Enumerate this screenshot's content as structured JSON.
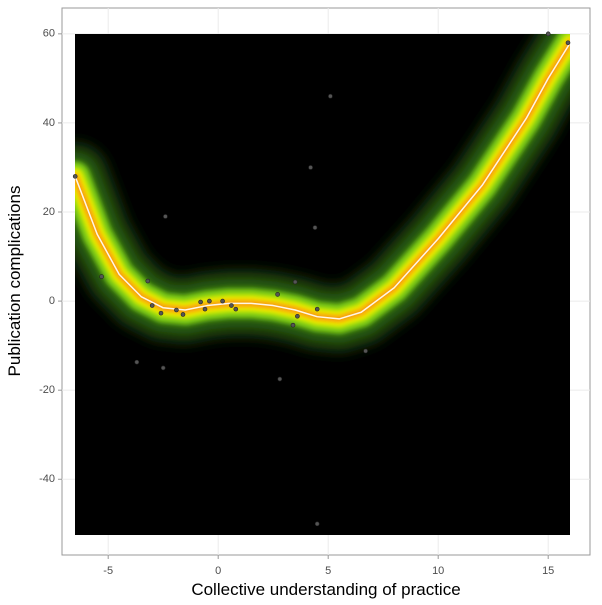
{
  "chart_data": {
    "type": "scatter",
    "x_label": "Collective understanding of practice",
    "y_label": "Publication complications",
    "xlim": [
      -7.1,
      16.9
    ],
    "ylim": [
      -57,
      65.8
    ],
    "xticks": [
      -5,
      0,
      5,
      10,
      15
    ],
    "yticks": [
      60,
      40,
      20,
      0,
      -20,
      -40
    ],
    "grid": true,
    "point_color": "#555555",
    "x": [
      -6.5,
      -3.2,
      -3,
      -2.6,
      -1.9,
      -1.6,
      -0.8,
      -0.6,
      -0.4,
      0.2,
      0.6,
      0.8,
      2.7,
      3.5,
      3.6,
      3.4,
      4.5,
      6.7,
      15,
      15.9,
      -2.4,
      -3.7,
      -2.5,
      5.1,
      4.2,
      4.4,
      4.5,
      2.8,
      -5.3
    ],
    "y": [
      28,
      4.5,
      -1,
      -2.7,
      -2,
      -3,
      -0.2,
      -1.8,
      0,
      0,
      -1,
      -1.8,
      1.5,
      4.3,
      -3.4,
      -5.4,
      -1.8,
      -11.2,
      60,
      58,
      19,
      -13.7,
      -15,
      46,
      30,
      16.5,
      -50,
      -17.5,
      5.5
    ],
    "fit": {
      "x": [
        -6.5,
        -5.5,
        -4.5,
        -3.5,
        -2.5,
        -1.5,
        -0.5,
        0.5,
        1.5,
        2.5,
        3.5,
        4.5,
        5.5,
        6.5,
        8,
        10,
        12,
        14,
        15,
        16
      ],
      "y": [
        28,
        15,
        6,
        1,
        -1.5,
        -2,
        -1,
        -0.5,
        -0.5,
        -1,
        -2,
        -3.5,
        -4,
        -2.5,
        3,
        14,
        26,
        41,
        50,
        58
      ]
    }
  }
}
